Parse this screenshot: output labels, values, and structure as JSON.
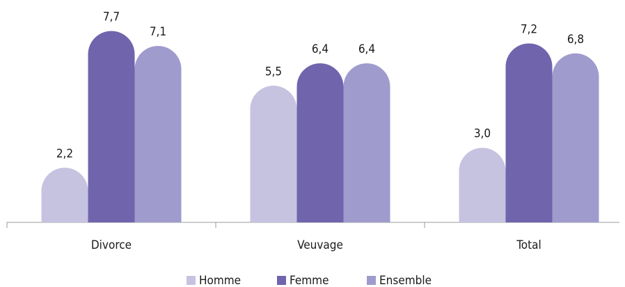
{
  "chart_data": {
    "type": "bar",
    "categories": [
      "Divorce",
      "Veuvage",
      "Total"
    ],
    "series": [
      {
        "name": "Homme",
        "color": "#c6c3e1",
        "values": [
          2.2,
          5.5,
          3.0
        ],
        "value_labels": [
          "2,2",
          "5,5",
          "3,0"
        ]
      },
      {
        "name": "Femme",
        "color": "#7064ad",
        "values": [
          7.7,
          6.4,
          7.2
        ],
        "value_labels": [
          "7,7",
          "6,4",
          "7,2"
        ]
      },
      {
        "name": "Ensemble",
        "color": "#9f9bcd",
        "values": [
          7.1,
          6.4,
          6.8
        ],
        "value_labels": [
          "7,1",
          "6,4",
          "6,8"
        ]
      }
    ],
    "ylim": [
      0,
      8.5
    ],
    "legend": "bottom"
  }
}
